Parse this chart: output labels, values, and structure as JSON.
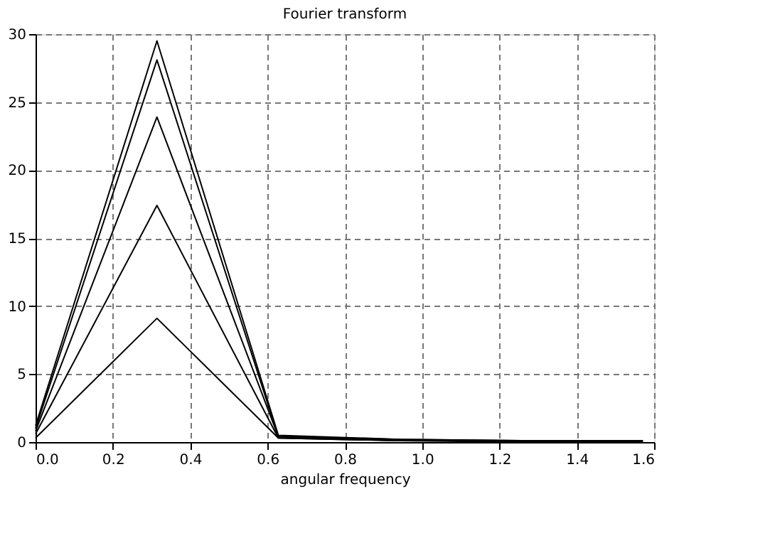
{
  "chart_data": {
    "type": "line",
    "title": "Fourier transform",
    "xlabel": "angular frequency",
    "x": [
      0,
      0.314,
      0.628,
      0.942,
      1.257,
      1.571
    ],
    "series": [
      {
        "color": "#000000",
        "values": [
          0.3,
          9.1,
          0.3,
          0.1,
          0.0,
          0.0
        ]
      },
      {
        "color": "#000000",
        "values": [
          0.6,
          17.4,
          0.3,
          0.1,
          0.1,
          0.0
        ]
      },
      {
        "color": "#000000",
        "values": [
          0.8,
          23.9,
          0.4,
          0.1,
          0.1,
          0.0
        ]
      },
      {
        "color": "#000000",
        "values": [
          1.0,
          28.1,
          0.4,
          0.2,
          0.1,
          0.1
        ]
      },
      {
        "color": "#000000",
        "values": [
          1.2,
          29.5,
          0.5,
          0.2,
          0.1,
          0.1
        ]
      }
    ],
    "xlim": [
      0,
      1.6
    ],
    "xticks": [
      {
        "value": 0,
        "label": "0.0"
      },
      {
        "value": 0.2,
        "label": "0.2"
      },
      {
        "value": 0.4,
        "label": "0.4"
      },
      {
        "value": 0.6,
        "label": "0.6"
      },
      {
        "value": 0.8,
        "label": "0.8"
      },
      {
        "value": 1.0,
        "label": "1.0"
      },
      {
        "value": 1.2,
        "label": "1.2"
      },
      {
        "value": 1.4,
        "label": "1.4"
      },
      {
        "value": 1.6,
        "label": "1.6"
      }
    ],
    "ylim": [
      0,
      30
    ],
    "yticks": [
      0,
      5,
      10,
      15,
      20,
      25,
      30
    ],
    "grid": true,
    "line_style": "solid",
    "marker": "none",
    "legend": false
  }
}
